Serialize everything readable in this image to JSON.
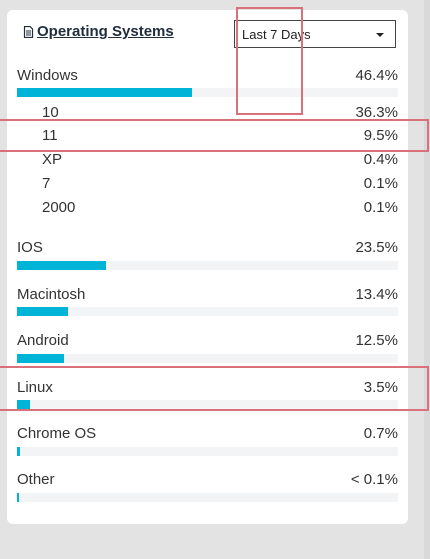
{
  "panel": {
    "title": "Operating Systems",
    "title_icon": "document-icon",
    "range": {
      "selected": "Last 7 Days"
    }
  },
  "accent_color": "#00b4d8",
  "highlight_color": "#d9707a",
  "os": [
    {
      "label": "Windows",
      "value": "46.4%",
      "share": 0.464,
      "versions": [
        {
          "label": "10",
          "value": "36.3%"
        },
        {
          "label": "11",
          "value": "9.5%"
        },
        {
          "label": "XP",
          "value": "0.4%"
        },
        {
          "label": "7",
          "value": "0.1%"
        },
        {
          "label": "2000",
          "value": "0.1%"
        }
      ]
    },
    {
      "label": "IOS",
      "value": "23.5%",
      "share": 0.235
    },
    {
      "label": "Macintosh",
      "value": "13.4%",
      "share": 0.134
    },
    {
      "label": "Android",
      "value": "12.5%",
      "share": 0.125
    },
    {
      "label": "Linux",
      "value": "3.5%",
      "share": 0.035
    },
    {
      "label": "Chrome OS",
      "value": "0.7%",
      "share": 0.007
    },
    {
      "label": "Other",
      "value": "< 0.1%",
      "share": 0.001
    }
  ]
}
